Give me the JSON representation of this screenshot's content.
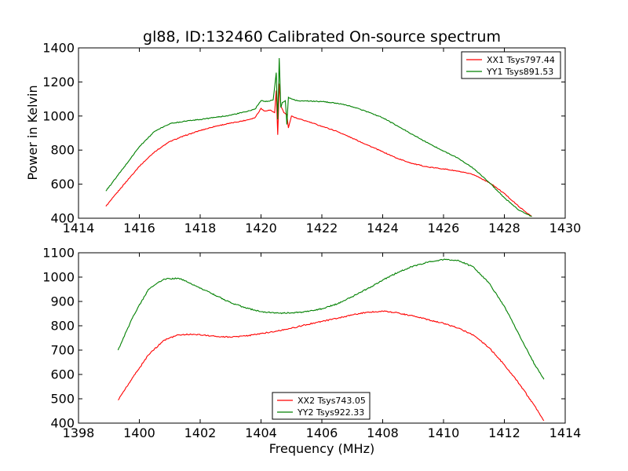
{
  "chart_data": [
    {
      "type": "line",
      "title": "gl88, ID:132460 Calibrated On-source spectrum",
      "xlabel": "",
      "ylabel": "Power in Kelvin",
      "xlim": [
        1414,
        1430
      ],
      "ylim": [
        400,
        1400
      ],
      "xticks": [
        1414,
        1416,
        1418,
        1420,
        1422,
        1424,
        1426,
        1428,
        1430
      ],
      "yticks": [
        400,
        600,
        800,
        1000,
        1200,
        1400
      ],
      "grid": false,
      "legend_position": "top-right",
      "series": [
        {
          "name": "XX1 Tsys797.44",
          "color": "#ff0000",
          "x": [
            1414.9,
            1415.5,
            1416,
            1416.5,
            1417,
            1417.5,
            1418,
            1418.5,
            1419,
            1419.5,
            1419.8,
            1420.0,
            1420.1,
            1420.3,
            1420.45,
            1420.5,
            1420.55,
            1420.6,
            1420.65,
            1420.75,
            1420.85,
            1420.9,
            1421.0,
            1421.2,
            1421.5,
            1422,
            1422.5,
            1423,
            1423.5,
            1424,
            1424.5,
            1425,
            1425.5,
            1426,
            1426.5,
            1427,
            1427.5,
            1428,
            1428.5,
            1428.9
          ],
          "y": [
            470,
            600,
            705,
            790,
            850,
            885,
            915,
            940,
            958,
            975,
            990,
            1045,
            1030,
            1035,
            1020,
            1150,
            890,
            1190,
            1060,
            1020,
            1010,
            930,
            1000,
            985,
            970,
            940,
            910,
            870,
            830,
            790,
            750,
            720,
            700,
            690,
            675,
            655,
            610,
            545,
            465,
            410
          ]
        },
        {
          "name": "YY1 Tsys891.53",
          "color": "#008000",
          "x": [
            1414.9,
            1415.5,
            1416,
            1416.5,
            1417,
            1417.5,
            1418,
            1418.5,
            1419,
            1419.5,
            1419.8,
            1420.0,
            1420.2,
            1420.4,
            1420.5,
            1420.55,
            1420.6,
            1420.65,
            1420.7,
            1420.8,
            1420.85,
            1420.9,
            1421.0,
            1421.2,
            1421.5,
            1422,
            1422.5,
            1423,
            1423.5,
            1424,
            1424.5,
            1425,
            1425.5,
            1426,
            1426.5,
            1427,
            1427.5,
            1428,
            1428.5,
            1428.9
          ],
          "y": [
            560,
            700,
            820,
            910,
            955,
            970,
            980,
            992,
            1005,
            1025,
            1040,
            1090,
            1085,
            1095,
            1255,
            980,
            1340,
            1050,
            1080,
            1090,
            950,
            1110,
            1100,
            1090,
            1088,
            1085,
            1075,
            1055,
            1025,
            990,
            940,
            890,
            840,
            795,
            750,
            690,
            610,
            520,
            445,
            410
          ]
        }
      ]
    },
    {
      "type": "line",
      "title": "",
      "xlabel": "Frequency (MHz)",
      "ylabel": "",
      "xlim": [
        1398,
        1414
      ],
      "ylim": [
        400,
        1100
      ],
      "xticks": [
        1398,
        1400,
        1402,
        1404,
        1406,
        1408,
        1410,
        1412,
        1414
      ],
      "yticks": [
        400,
        500,
        600,
        700,
        800,
        900,
        1000,
        1100
      ],
      "grid": false,
      "legend_position": "lower-center",
      "series": [
        {
          "name": "XX2 Tsys743.05",
          "color": "#ff0000",
          "x": [
            1399.3,
            1399.8,
            1400.3,
            1400.8,
            1401.3,
            1401.8,
            1402.5,
            1403,
            1403.5,
            1404,
            1404.5,
            1405,
            1405.5,
            1406,
            1406.5,
            1407,
            1407.5,
            1408,
            1408.5,
            1409,
            1409.5,
            1410,
            1410.5,
            1411,
            1411.5,
            1412,
            1412.5,
            1413,
            1413.3
          ],
          "y": [
            495,
            590,
            680,
            740,
            763,
            765,
            757,
            753,
            758,
            768,
            778,
            790,
            805,
            818,
            830,
            845,
            856,
            860,
            853,
            840,
            825,
            810,
            790,
            760,
            710,
            640,
            560,
            470,
            410
          ]
        },
        {
          "name": "YY2 Tsys922.33",
          "color": "#008000",
          "x": [
            1399.3,
            1399.8,
            1400.3,
            1400.8,
            1401.3,
            1401.8,
            1402.5,
            1403,
            1403.5,
            1404,
            1404.5,
            1405,
            1405.5,
            1406,
            1406.5,
            1407,
            1407.5,
            1408,
            1408.5,
            1409,
            1409.5,
            1410,
            1410.5,
            1411,
            1411.5,
            1412,
            1412.5,
            1413,
            1413.3
          ],
          "y": [
            700,
            840,
            950,
            992,
            995,
            968,
            925,
            895,
            873,
            858,
            852,
            853,
            858,
            870,
            890,
            920,
            952,
            988,
            1020,
            1045,
            1062,
            1072,
            1068,
            1040,
            975,
            880,
            760,
            640,
            580
          ]
        }
      ]
    }
  ]
}
